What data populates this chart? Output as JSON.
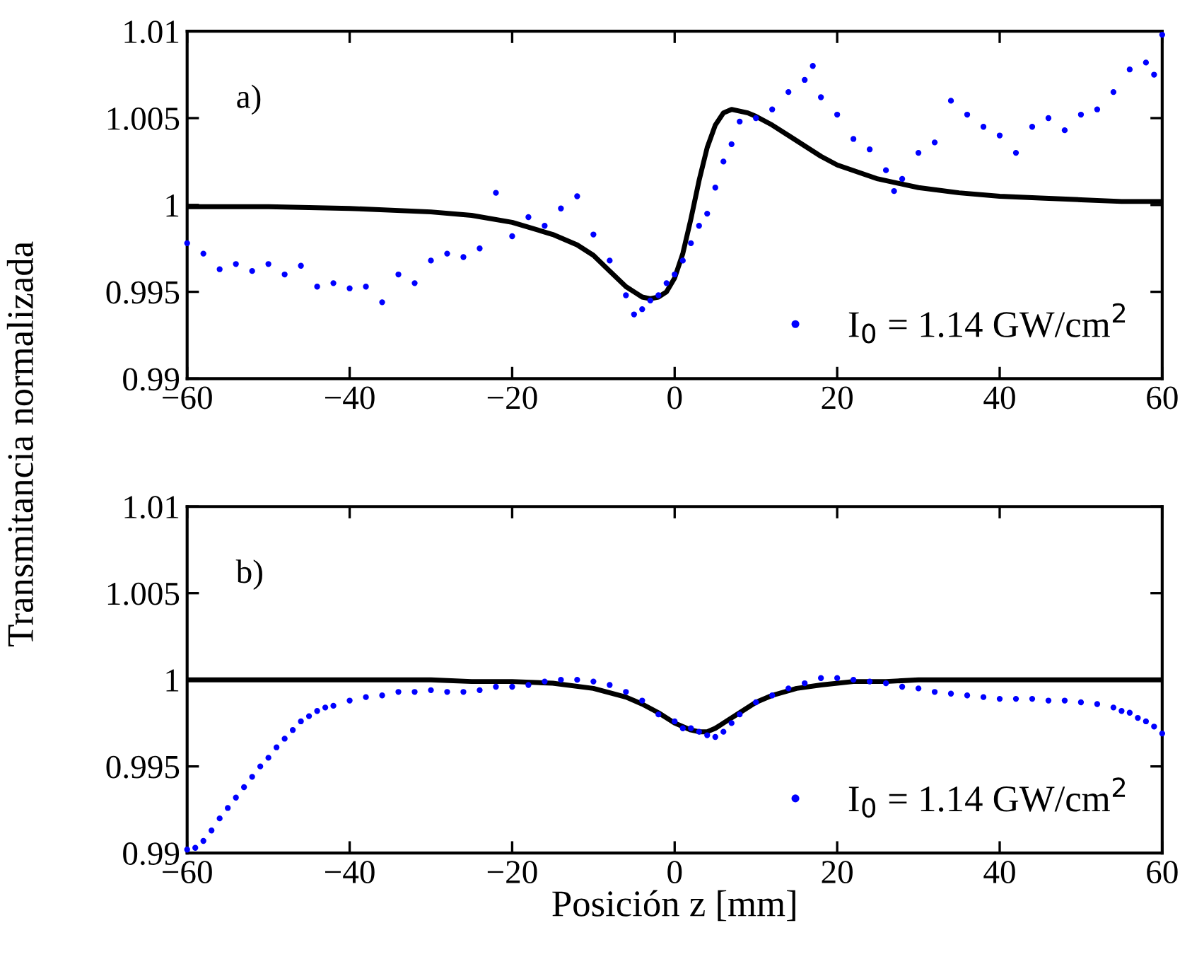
{
  "chart_data": [
    {
      "type": "scatter",
      "ylabel": "Transmitancia normalizada",
      "xlim": [
        -60,
        60
      ],
      "ylim": [
        0.99,
        1.01
      ],
      "xticks": [
        {
          "value": -60,
          "label": "−60"
        },
        {
          "value": -40,
          "label": "−40"
        },
        {
          "value": -20,
          "label": "−20"
        },
        0,
        20,
        40,
        60
      ],
      "yticks": [
        0.99,
        0.995,
        1,
        1.005,
        1.01
      ],
      "grid": false,
      "legend": "bottom right",
      "marker": "circle",
      "annotations": [
        "a)"
      ],
      "series": [
        {
          "name": "I$_{0}$ = 1.14 GW/cm$^{2}$",
          "color": "#0000ff",
          "x": [
            -60,
            -58,
            -56,
            -54,
            -52,
            -50,
            -48,
            -46,
            -44,
            -42,
            -40,
            -38,
            -36,
            -34,
            -32,
            -30,
            -28,
            -26,
            -24,
            -22,
            -20,
            -18,
            -16,
            -14,
            -12,
            -10,
            -8,
            -6,
            -5,
            -4,
            -3,
            -2,
            -1,
            0,
            1,
            2,
            3,
            4,
            5,
            6,
            7,
            8,
            10,
            12,
            14,
            16,
            17,
            18,
            20,
            22,
            24,
            26,
            27,
            28,
            30,
            32,
            34,
            36,
            38,
            40,
            42,
            44,
            46,
            48,
            50,
            52,
            54,
            56,
            58,
            59,
            60
          ],
          "values": [
            0.9978,
            0.9972,
            0.9963,
            0.9966,
            0.9962,
            0.9966,
            0.996,
            0.9965,
            0.9953,
            0.9955,
            0.9952,
            0.9953,
            0.9944,
            0.996,
            0.9955,
            0.9968,
            0.9972,
            0.997,
            0.9975,
            1.0007,
            0.9982,
            0.9993,
            0.9988,
            0.9998,
            1.0005,
            0.9983,
            0.9968,
            0.9948,
            0.9937,
            0.994,
            0.9945,
            0.9948,
            0.9955,
            0.996,
            0.9968,
            0.9978,
            0.9988,
            0.9995,
            1.001,
            1.0025,
            1.0035,
            1.0048,
            1.005,
            1.0055,
            1.0065,
            1.0072,
            1.008,
            1.0062,
            1.0052,
            1.0038,
            1.0032,
            1.002,
            1.0008,
            1.0015,
            1.003,
            1.0036,
            1.006,
            1.0052,
            1.0045,
            1.004,
            1.003,
            1.0045,
            1.005,
            1.0043,
            1.0052,
            1.0055,
            1.0065,
            1.0078,
            1.0082,
            1.0075,
            1.0098
          ]
        },
        {
          "type": "line",
          "color": "#000000",
          "marker": "none",
          "x": [
            -60,
            -50,
            -40,
            -30,
            -25,
            -20,
            -15,
            -12,
            -10,
            -8,
            -6,
            -5,
            -4,
            -3,
            -2,
            -1,
            0,
            1,
            2,
            3,
            4,
            5,
            6,
            7,
            8,
            9,
            10,
            12,
            14,
            16,
            18,
            20,
            25,
            30,
            35,
            40,
            45,
            50,
            55,
            60
          ],
          "values": [
            0.9999,
            0.9999,
            0.9998,
            0.9996,
            0.9994,
            0.999,
            0.9983,
            0.9977,
            0.9971,
            0.9962,
            0.9953,
            0.995,
            0.9947,
            0.9946,
            0.9947,
            0.995,
            0.9958,
            0.9972,
            0.9992,
            1.0014,
            1.0033,
            1.0046,
            1.0053,
            1.0055,
            1.0054,
            1.0053,
            1.0051,
            1.0046,
            1.004,
            1.0034,
            1.0028,
            1.0023,
            1.0015,
            1.001,
            1.0007,
            1.0005,
            1.0004,
            1.0003,
            1.0002,
            1.0002
          ]
        }
      ]
    },
    {
      "type": "scatter",
      "xlabel": "Posición z [mm]",
      "xlim": [
        -60,
        60
      ],
      "ylim": [
        0.99,
        1.01
      ],
      "xticks": [
        {
          "value": -60,
          "label": "−60"
        },
        {
          "value": -40,
          "label": "−40"
        },
        {
          "value": -20,
          "label": "−20"
        },
        0,
        20,
        40,
        60
      ],
      "yticks": [
        0.99,
        0.995,
        1,
        1.005,
        1.01
      ],
      "grid": false,
      "legend": "bottom right",
      "marker": "circle",
      "annotations": [
        "b)"
      ],
      "series": [
        {
          "name": "I$_{0}$ = 1.14 GW/cm$^{2}$",
          "color": "#0000ff",
          "x": [
            -60,
            -59,
            -58,
            -57,
            -56,
            -55,
            -54,
            -53,
            -52,
            -51,
            -50,
            -49,
            -48,
            -47,
            -46,
            -45,
            -44,
            -43,
            -42,
            -40,
            -38,
            -36,
            -34,
            -32,
            -30,
            -28,
            -26,
            -24,
            -22,
            -20,
            -18,
            -16,
            -14,
            -12,
            -10,
            -8,
            -6,
            -4,
            -2,
            0,
            1,
            2,
            3,
            4,
            5,
            6,
            7,
            8,
            10,
            12,
            14,
            16,
            18,
            20,
            22,
            24,
            26,
            28,
            30,
            32,
            34,
            36,
            38,
            40,
            42,
            44,
            46,
            48,
            50,
            52,
            54,
            55,
            56,
            57,
            58,
            59,
            60
          ],
          "values": [
            0.9902,
            0.9903,
            0.9907,
            0.9913,
            0.992,
            0.9926,
            0.9932,
            0.9938,
            0.9944,
            0.995,
            0.9955,
            0.9961,
            0.9966,
            0.9971,
            0.9976,
            0.9979,
            0.9982,
            0.9984,
            0.9985,
            0.9988,
            0.999,
            0.9991,
            0.9993,
            0.9993,
            0.9994,
            0.9993,
            0.9993,
            0.9994,
            0.9996,
            0.9996,
            0.9997,
            0.9999,
            1.0,
            1.0,
            0.9999,
            0.9997,
            0.9993,
            0.9988,
            0.998,
            0.9976,
            0.9972,
            0.9972,
            0.997,
            0.9968,
            0.9967,
            0.997,
            0.9975,
            0.998,
            0.9987,
            0.9991,
            0.9995,
            0.9998,
            1.0001,
            1.0001,
            1.0,
            0.9999,
            0.9998,
            0.9996,
            0.9995,
            0.9993,
            0.9992,
            0.9991,
            0.999,
            0.9989,
            0.9989,
            0.9989,
            0.9988,
            0.9988,
            0.9987,
            0.9986,
            0.9984,
            0.9982,
            0.9981,
            0.9978,
            0.9976,
            0.9973,
            0.9969
          ]
        },
        {
          "type": "line",
          "color": "#000000",
          "marker": "none",
          "x": [
            -60,
            -40,
            -30,
            -25,
            -20,
            -15,
            -10,
            -6,
            -4,
            -2,
            0,
            2,
            3,
            4,
            5,
            6,
            8,
            10,
            12,
            15,
            18,
            22,
            26,
            30,
            40,
            50,
            60
          ],
          "values": [
            1.0,
            1.0,
            1.0,
            0.9999,
            0.9999,
            0.9998,
            0.9995,
            0.999,
            0.9986,
            0.9981,
            0.9975,
            0.9971,
            0.997,
            0.997,
            0.9972,
            0.9975,
            0.9981,
            0.9987,
            0.9991,
            0.9995,
            0.9997,
            0.9999,
            0.9999,
            1.0,
            1.0,
            1.0,
            1.0
          ]
        }
      ]
    }
  ]
}
